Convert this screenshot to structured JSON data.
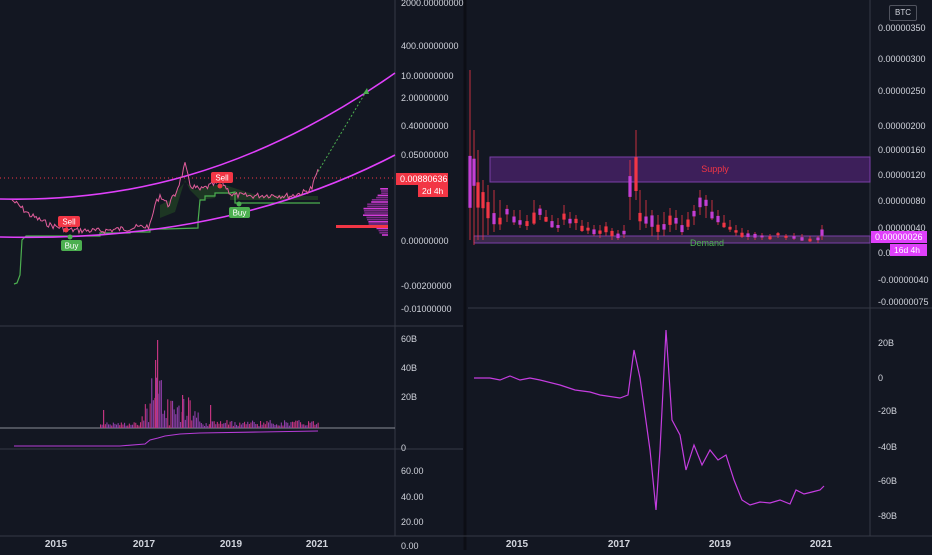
{
  "left_chart": {
    "price_axis_labels": [
      "2000.00000000",
      "400.00000000",
      "10.00000000",
      "2.00000000",
      "0.40000000",
      "0.05000000",
      "0.00000000",
      "-0.00200000",
      "-0.01000000"
    ],
    "price_badge": {
      "value": "0.00880636",
      "timer": "2d 4h"
    },
    "signals": {
      "sell_1": "Sell",
      "buy_1": "Buy",
      "sell_2": "Sell",
      "buy_2": "Buy"
    },
    "volume_axis_labels": [
      "60B",
      "40B",
      "20B",
      "0"
    ],
    "indicator_axis_labels": [
      "60.00",
      "40.00",
      "20.00",
      "0.00"
    ],
    "time_labels": [
      "2015",
      "2017",
      "2019",
      "2021"
    ]
  },
  "right_chart": {
    "currency_badge": "BTC",
    "price_axis_labels": [
      "0.00000350",
      "0.00000300",
      "0.00000250",
      "0.00000200",
      "0.00000160",
      "0.00000120",
      "0.00000080",
      "0.00000040",
      "0.00000000",
      "-0.00000040",
      "-0.00000075"
    ],
    "price_badge": {
      "value": "0.00000026",
      "timer": "16d 4h"
    },
    "zones": {
      "supply": "Supply",
      "demand": "Demand"
    },
    "indicator_axis_labels": [
      "20B",
      "0",
      "-20B",
      "-40B",
      "-60B",
      "-80B"
    ],
    "time_labels": [
      "2015",
      "2017",
      "2019",
      "2021"
    ]
  },
  "chart_data": [
    {
      "type": "line",
      "title": "",
      "x": [
        "2014",
        "2015",
        "2016",
        "2017",
        "2018",
        "2019",
        "2020",
        "2021"
      ],
      "series": [
        {
          "values": [
            0.0006,
            0.0003,
            0.0003,
            0.004,
            0.02,
            0.004,
            0.003,
            0.0088
          ]
        }
      ],
      "annotations": [
        "Sell",
        "Buy",
        "Sell",
        "Buy"
      ],
      "legend": "none"
    },
    {
      "type": "line",
      "title": "",
      "x": [
        "2014",
        "2015",
        "2016",
        "2017",
        "2017.5",
        "2018",
        "2018.5",
        "2019",
        "2020",
        "2021"
      ],
      "series": [
        {
          "values": [
            0,
            0,
            -1,
            -3,
            5,
            -75,
            -30,
            -50,
            -75,
            -68
          ]
        }
      ],
      "ylim": [
        -80,
        20
      ],
      "legend": "none"
    }
  ]
}
